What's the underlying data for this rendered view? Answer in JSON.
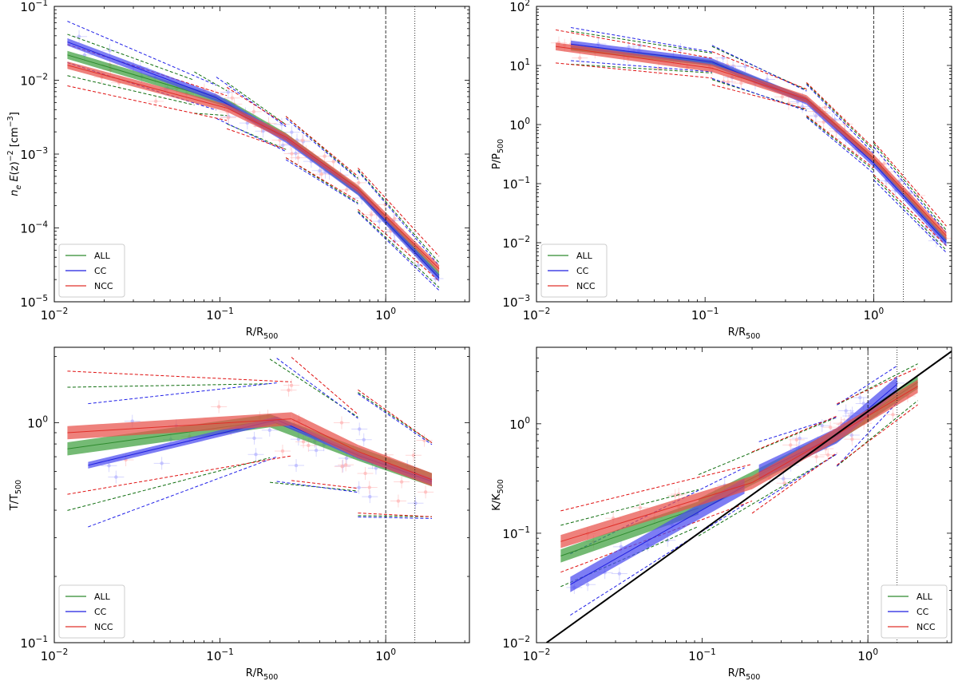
{
  "figure": {
    "background": "#ffffff"
  },
  "colors": {
    "ALL": "#2e8b2e",
    "CC": "#1f1fe0",
    "NCC": "#e0302a",
    "ALL_band": "#3f9f3f",
    "CC_band": "#4b4bf0",
    "NCC_band": "#e8504a",
    "ALL_dash": "#0f6e0f",
    "CC_dash": "#2020e8",
    "NCC_dash": "#e01010",
    "scatter_CC": "#b8b8ff",
    "scatter_NCC": "#ffb8b8"
  },
  "chart_data": [
    {
      "id": "ne",
      "type": "line",
      "xlabel": "R/R500",
      "ylabel": "n_e E(z)^-2 [cm^-3]",
      "xscale": "log",
      "yscale": "log",
      "xlim": [
        0.01,
        3.2
      ],
      "ylim": [
        1e-05,
        0.1
      ],
      "xticks": [
        {
          "v": 0.01,
          "b": "10",
          "e": "−2"
        },
        {
          "v": 0.1,
          "b": "10",
          "e": "−1"
        },
        {
          "v": 1,
          "b": "10",
          "e": "0"
        }
      ],
      "yticks": [
        {
          "v": 1e-05,
          "b": "10",
          "e": "−5"
        },
        {
          "v": 0.0001,
          "b": "10",
          "e": "−4"
        },
        {
          "v": 0.001,
          "b": "10",
          "e": "−3"
        },
        {
          "v": 0.01,
          "b": "10",
          "e": "−2"
        },
        {
          "v": 0.1,
          "b": "10",
          "e": "−1"
        }
      ],
      "vlines": [
        {
          "x": 1.0,
          "style": "dashed"
        },
        {
          "x": 1.5,
          "style": "dotted"
        }
      ],
      "legend": {
        "position": "lower-left",
        "entries": [
          "ALL",
          "CC",
          "NCC"
        ]
      },
      "series": [
        {
          "name": "ALL",
          "bw": 0.11,
          "segments": [
            [
              [
                0.012,
                0.022
              ],
              [
                0.07,
                0.0068
              ]
            ],
            [
              [
                0.07,
                0.0068
              ],
              [
                0.11,
                0.0049
              ]
            ],
            [
              [
                0.11,
                0.0049
              ],
              [
                0.25,
                0.0017
              ]
            ],
            [
              [
                0.25,
                0.0017
              ],
              [
                0.68,
                0.00032
              ]
            ],
            [
              [
                0.68,
                0.00032
              ],
              [
                2.1,
                2.3e-05
              ]
            ]
          ]
        },
        {
          "name": "CC",
          "bw": 0.1,
          "segments": [
            [
              [
                0.012,
                0.033
              ],
              [
                0.095,
                0.0058
              ]
            ],
            [
              [
                0.095,
                0.0058
              ],
              [
                0.25,
                0.0016
              ]
            ],
            [
              [
                0.25,
                0.0016
              ],
              [
                0.68,
                0.00031
              ]
            ],
            [
              [
                0.68,
                0.00031
              ],
              [
                2.1,
                2.1e-05
              ]
            ]
          ]
        },
        {
          "name": "NCC",
          "bw": 0.1,
          "segments": [
            [
              [
                0.012,
                0.016
              ],
              [
                0.11,
                0.0042
              ]
            ],
            [
              [
                0.11,
                0.0042
              ],
              [
                0.25,
                0.0017
              ]
            ],
            [
              [
                0.25,
                0.0017
              ],
              [
                0.68,
                0.00034
              ]
            ],
            [
              [
                0.68,
                0.00034
              ],
              [
                2.1,
                2.8e-05
              ]
            ]
          ]
        }
      ]
    },
    {
      "id": "pressure",
      "type": "line",
      "xlabel": "R/R500",
      "ylabel": "P/P500",
      "xscale": "log",
      "yscale": "log",
      "xlim": [
        0.01,
        2.9
      ],
      "ylim": [
        0.001,
        100
      ],
      "xticks": [
        {
          "v": 0.01,
          "b": "10",
          "e": "−2"
        },
        {
          "v": 0.1,
          "b": "10",
          "e": "−1"
        },
        {
          "v": 1,
          "b": "10",
          "e": "0"
        }
      ],
      "yticks": [
        {
          "v": 0.001,
          "b": "10",
          "e": "−3"
        },
        {
          "v": 0.01,
          "b": "10",
          "e": "−2"
        },
        {
          "v": 0.1,
          "b": "10",
          "e": "−1"
        },
        {
          "v": 1,
          "b": "10",
          "e": "0"
        },
        {
          "v": 10,
          "b": "10",
          "e": "1"
        },
        {
          "v": 100,
          "b": "10",
          "e": "2"
        }
      ],
      "vlines": [
        {
          "x": 1.0,
          "style": "dashed"
        },
        {
          "x": 1.5,
          "style": "dotted"
        }
      ],
      "legend": {
        "position": "lower-left",
        "entries": [
          "ALL",
          "CC",
          "NCC"
        ]
      },
      "series": [
        {
          "name": "ALL",
          "bw": 0.1,
          "segments": [
            [
              [
                0.016,
                20
              ],
              [
                0.11,
                11
              ]
            ],
            [
              [
                0.11,
                11
              ],
              [
                0.4,
                2.6
              ]
            ],
            [
              [
                0.4,
                2.6
              ],
              [
                1.0,
                0.25
              ]
            ],
            [
              [
                1.0,
                0.25
              ],
              [
                2.7,
                0.011
              ]
            ]
          ]
        },
        {
          "name": "CC",
          "bw": 0.12,
          "segments": [
            [
              [
                0.016,
                23
              ],
              [
                0.11,
                11.5
              ]
            ],
            [
              [
                0.11,
                11.5
              ],
              [
                0.4,
                2.5
              ]
            ],
            [
              [
                0.4,
                2.5
              ],
              [
                1.0,
                0.22
              ]
            ],
            [
              [
                1.0,
                0.22
              ],
              [
                2.7,
                0.01
              ]
            ]
          ]
        },
        {
          "name": "NCC",
          "bw": 0.13,
          "segments": [
            [
              [
                0.013,
                21
              ],
              [
                0.11,
                9
              ]
            ],
            [
              [
                0.11,
                9
              ],
              [
                0.4,
                2.7
              ]
            ],
            [
              [
                0.4,
                2.7
              ],
              [
                1.0,
                0.27
              ]
            ],
            [
              [
                1.0,
                0.27
              ],
              [
                2.7,
                0.013
              ]
            ]
          ]
        }
      ]
    },
    {
      "id": "temperature",
      "type": "line",
      "xlabel": "R/R500",
      "ylabel": "T/T500",
      "xscale": "log",
      "yscale": "log",
      "xlim": [
        0.01,
        3.2
      ],
      "ylim": [
        0.1,
        2.2
      ],
      "xticks": [
        {
          "v": 0.01,
          "b": "10",
          "e": "−2"
        },
        {
          "v": 0.1,
          "b": "10",
          "e": "−1"
        },
        {
          "v": 1,
          "b": "10",
          "e": "0"
        }
      ],
      "yticks": [
        {
          "v": 0.1,
          "b": "10",
          "e": "−1"
        },
        {
          "v": 1,
          "b": "10",
          "e": "0"
        }
      ],
      "vlines": [
        {
          "x": 1.0,
          "style": "dashed"
        },
        {
          "x": 1.5,
          "style": "dotted"
        }
      ],
      "legend": {
        "position": "lower-left",
        "entries": [
          "ALL",
          "CC",
          "NCC"
        ]
      },
      "series": [
        {
          "name": "ALL",
          "bw": 0.06,
          "segments": [
            [
              [
                0.012,
                0.76
              ],
              [
                0.2,
                1.02
              ]
            ],
            [
              [
                0.2,
                1.02
              ],
              [
                0.68,
                0.72
              ]
            ],
            [
              [
                0.68,
                0.72
              ],
              [
                1.9,
                0.55
              ]
            ]
          ]
        },
        {
          "name": "CC",
          "bw": 0.03,
          "segments": [
            [
              [
                0.016,
                0.64
              ],
              [
                0.22,
                1.03
              ]
            ],
            [
              [
                0.22,
                1.03
              ],
              [
                0.68,
                0.71
              ]
            ],
            [
              [
                0.68,
                0.71
              ],
              [
                1.9,
                0.54
              ]
            ]
          ]
        },
        {
          "name": "NCC",
          "bw": 0.06,
          "segments": [
            [
              [
                0.012,
                0.9
              ],
              [
                0.27,
                1.04
              ]
            ],
            [
              [
                0.27,
                1.04
              ],
              [
                0.68,
                0.74
              ]
            ],
            [
              [
                0.68,
                0.74
              ],
              [
                1.9,
                0.55
              ]
            ]
          ]
        }
      ]
    },
    {
      "id": "entropy",
      "type": "line",
      "xlabel": "R/R500",
      "ylabel": "K/K500",
      "xscale": "log",
      "yscale": "log",
      "xlim": [
        0.01,
        3.2
      ],
      "ylim": [
        0.01,
        5
      ],
      "xticks": [
        {
          "v": 0.01,
          "b": "10",
          "e": "−2"
        },
        {
          "v": 0.1,
          "b": "10",
          "e": "−1"
        },
        {
          "v": 1,
          "b": "10",
          "e": "0"
        }
      ],
      "yticks": [
        {
          "v": 0.01,
          "b": "10",
          "e": "−2"
        },
        {
          "v": 0.1,
          "b": "10",
          "e": "−1"
        },
        {
          "v": 1,
          "b": "10",
          "e": "0"
        }
      ],
      "vlines": [
        {
          "x": 1.0,
          "style": "dashed"
        },
        {
          "x": 1.5,
          "style": "dotted"
        }
      ],
      "refline": {
        "from": [
          0.0115,
          0.01
        ],
        "to": [
          3.2,
          4.6
        ]
      },
      "legend": {
        "position": "lower-right",
        "entries": [
          "ALL",
          "CC",
          "NCC"
        ]
      },
      "series": [
        {
          "name": "ALL",
          "bw": 0.12,
          "segments": [
            [
              [
                0.014,
                0.062
              ],
              [
                0.095,
                0.17
              ]
            ],
            [
              [
                0.095,
                0.18
              ],
              [
                0.65,
                0.78
              ]
            ],
            [
              [
                0.65,
                0.78
              ],
              [
                2.0,
                2.4
              ]
            ]
          ]
        },
        {
          "name": "CC",
          "bw": 0.14,
          "segments": [
            [
              [
                0.016,
                0.034
              ],
              [
                0.18,
                0.27
              ]
            ],
            [
              [
                0.22,
                0.36
              ],
              [
                0.65,
                0.78
              ]
            ],
            [
              [
                0.65,
                0.78
              ],
              [
                1.5,
                2.3
              ]
            ]
          ]
        },
        {
          "name": "NCC",
          "bw": 0.12,
          "segments": [
            [
              [
                0.014,
                0.084
              ],
              [
                0.2,
                0.29
              ]
            ],
            [
              [
                0.2,
                0.29
              ],
              [
                0.65,
                0.8
              ]
            ],
            [
              [
                0.65,
                0.8
              ],
              [
                2.0,
                2.2
              ]
            ]
          ]
        }
      ]
    }
  ]
}
